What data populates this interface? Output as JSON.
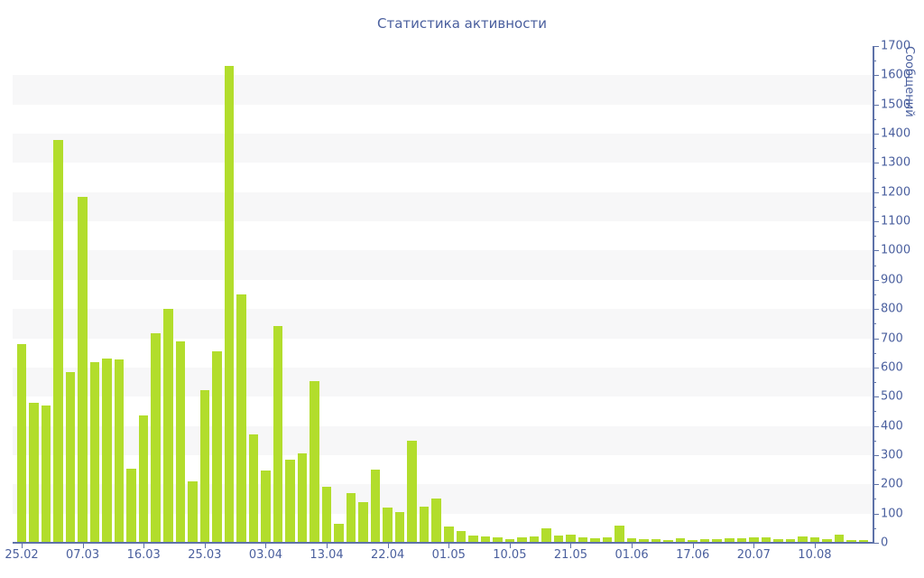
{
  "chart_data": {
    "type": "bar",
    "title": "Статистика активности",
    "xlabel": "",
    "ylabel": "Сообщений",
    "ylim": [
      0,
      1700
    ],
    "y_major_step": 100,
    "y_minor_step": 50,
    "grid": "alternating horizontal bands every 100 units",
    "legend": "none",
    "values": [
      680,
      478,
      470,
      1380,
      584,
      1185,
      617,
      630,
      627,
      255,
      435,
      716,
      801,
      690,
      210,
      522,
      655,
      1631,
      850,
      370,
      246,
      742,
      283,
      305,
      553,
      192,
      66,
      169,
      138,
      249,
      122,
      104,
      348,
      125,
      151,
      55,
      40,
      26,
      23,
      20,
      11,
      20,
      23,
      51,
      26,
      29,
      20,
      14,
      20,
      60,
      17,
      11,
      11,
      8,
      14,
      8,
      11,
      11,
      17,
      14,
      20,
      20,
      11,
      11,
      23,
      20,
      11,
      29,
      8,
      8
    ],
    "x_tick_labels": [
      "25.02",
      "07.03",
      "16.03",
      "25.03",
      "03.04",
      "13.04",
      "22.04",
      "01.05",
      "10.05",
      "21.05",
      "01.06",
      "17.06",
      "20.07",
      "10.08"
    ],
    "x_tick_bar_indices": [
      0,
      5,
      10,
      15,
      20,
      25,
      30,
      35,
      40,
      45,
      50,
      55,
      60,
      65
    ],
    "colors": {
      "bar": "#b2dd2c",
      "band": "#f7f7f8",
      "axis_line": "#5e72a8",
      "label_text": "#4a5f9e",
      "title_text": "#4a5f9e",
      "background": "#ffffff"
    }
  }
}
